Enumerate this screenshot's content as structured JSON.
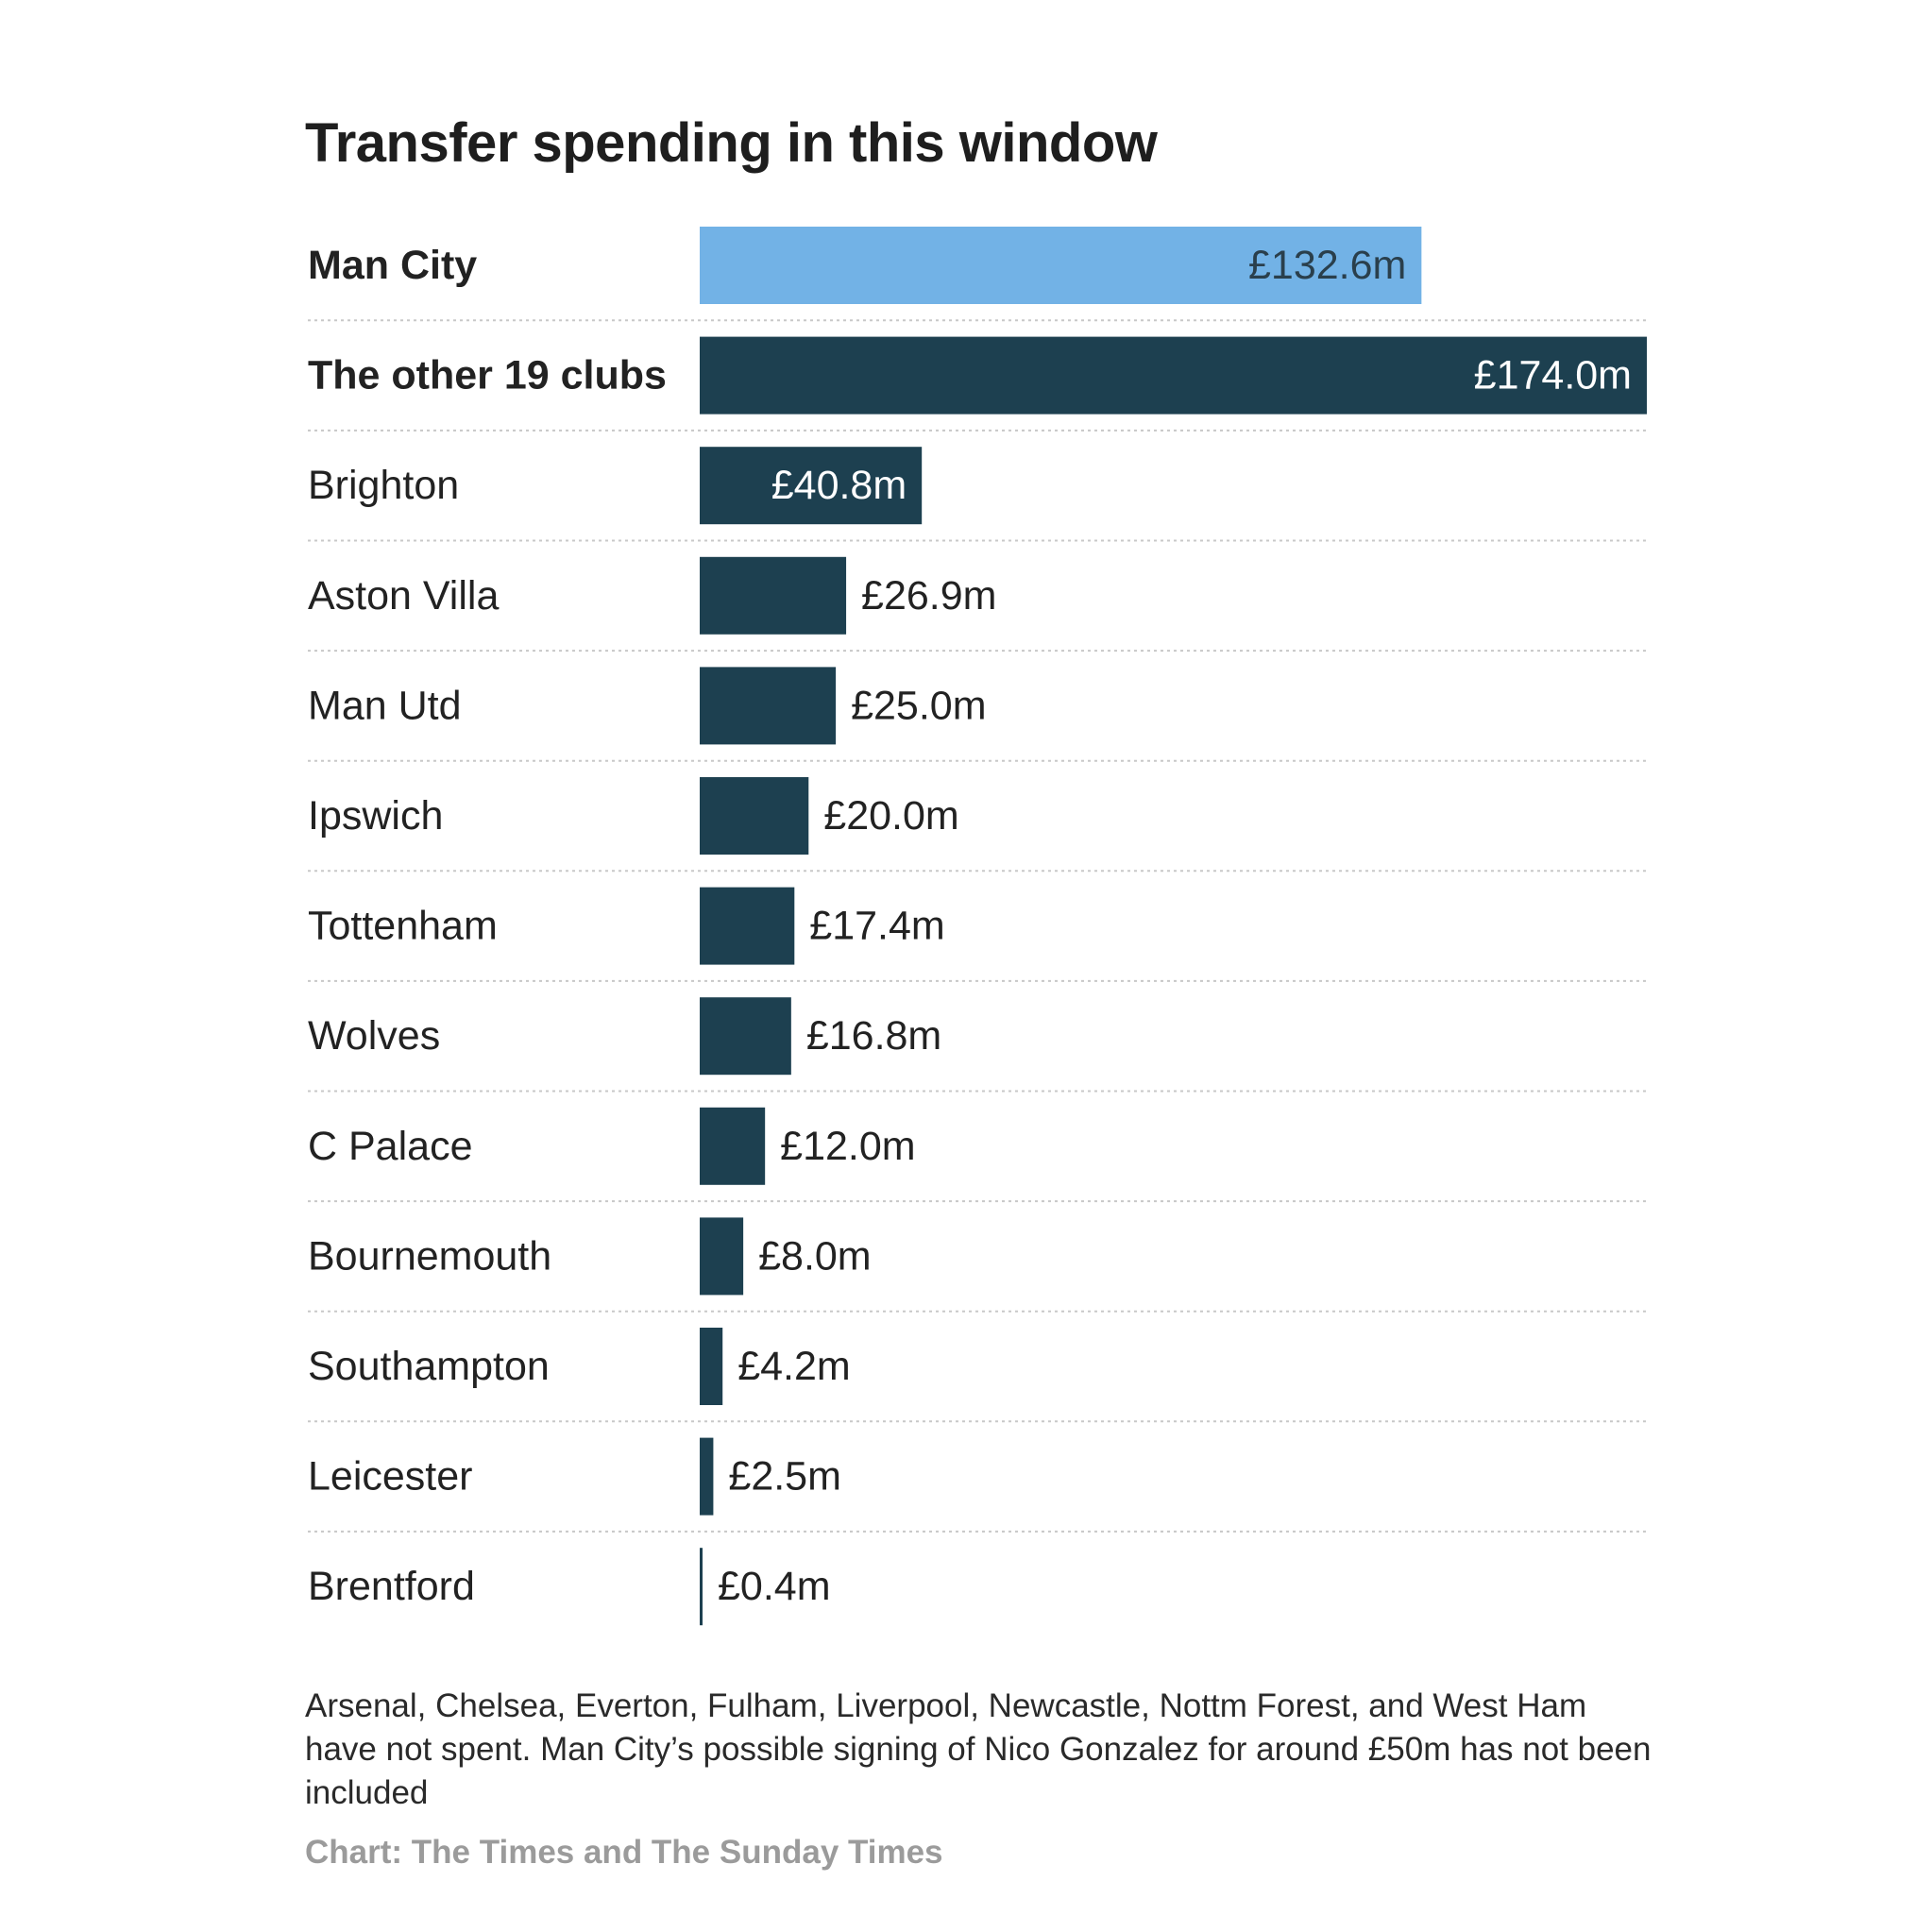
{
  "title": "Transfer spending in this window",
  "note": "Arsenal, Chelsea, Everton, Fulham, Liverpool, Newcastle, Nottm Forest, and West Ham have not spent. Man City’s possible signing of Nico Gonzalez for around £50m has not been included",
  "source": "Chart: The Times and The Sunday Times",
  "colors": {
    "highlight": "#72b2e6",
    "bar": "#1d4050",
    "separator": "#c8c8c8"
  },
  "chart_data": {
    "type": "bar",
    "orientation": "horizontal",
    "title": "Transfer spending in this window",
    "xlim": [
      0,
      174.0
    ],
    "grid": false,
    "legend": "none",
    "categories": [
      "Man City",
      "The other 19 clubs",
      "Brighton",
      "Aston Villa",
      "Man Utd",
      "Ipswich",
      "Tottenham",
      "Wolves",
      "C Palace",
      "Bournemouth",
      "Southampton",
      "Leicester",
      "Brentford"
    ],
    "values": [
      132.6,
      174.0,
      40.8,
      26.9,
      25.0,
      20.0,
      17.4,
      16.8,
      12.0,
      8.0,
      4.2,
      2.5,
      0.4
    ],
    "value_labels": [
      "£132.6m",
      "£174.0m",
      "£40.8m",
      "£26.9m",
      "£25.0m",
      "£20.0m",
      "£17.4m",
      "£16.8m",
      "£12.0m",
      "£8.0m",
      "£4.2m",
      "£2.5m",
      "£0.4m"
    ],
    "bold_categories": [
      "Man City",
      "The other 19 clubs"
    ],
    "highlight_category": "Man City"
  }
}
